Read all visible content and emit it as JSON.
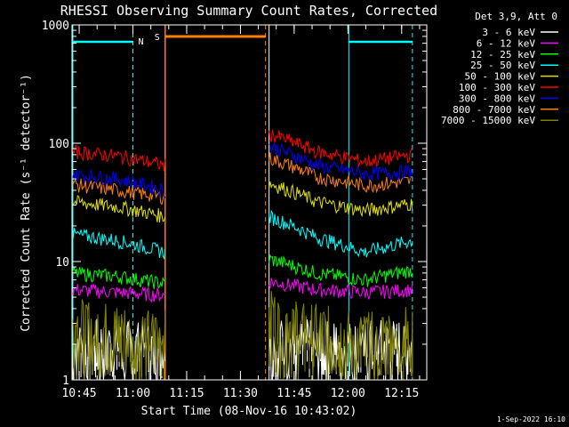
{
  "chart_data": {
    "type": "line",
    "title": "RHESSI Observing Summary Count Rates, Corrected",
    "xlabel": "Start Time (08-Nov-16 10:43:02)",
    "ylabel": "Corrected Count Rate (s⁻¹ detector⁻¹)",
    "x_ticks": [
      "10:45",
      "11:00",
      "11:15",
      "11:30",
      "11:45",
      "12:00",
      "12:15"
    ],
    "y_ticks": [
      "1",
      "10",
      "100",
      "1000"
    ],
    "y_scale": "log",
    "ylim": [
      1,
      1000
    ],
    "xlim": [
      "10:43",
      "12:22"
    ],
    "grid": false,
    "legend_title": "Det 3,9, Att 0",
    "legend_position": "right",
    "footer": "1-Sep-2022 16:10",
    "flags": [
      {
        "label": "N",
        "color": "#00ffff",
        "intervals": [
          [
            "10:43",
            "11:00"
          ],
          [
            "12:00",
            "12:18"
          ]
        ]
      },
      {
        "label": "S",
        "color": "#ff8000",
        "intervals": [
          [
            "11:09",
            "11:38"
          ]
        ]
      }
    ],
    "data_gap": [
      "11:09",
      "11:38"
    ],
    "series": [
      {
        "name": "3 - 6 keV",
        "color": "#ffffff",
        "before_gap": [
          2.0,
          1.9,
          1.8
        ],
        "after_gap": [
          2.0,
          1.9,
          1.9,
          2.0
        ]
      },
      {
        "name": "6 - 12 keV",
        "color": "#ff00ff",
        "before_gap": [
          5.8,
          5.5,
          5.2
        ],
        "after_gap": [
          6.8,
          5.8,
          5.5,
          5.8
        ]
      },
      {
        "name": "12 - 25 keV",
        "color": "#00ff00",
        "before_gap": [
          8.0,
          7.5,
          6.5
        ],
        "after_gap": [
          10.5,
          8.0,
          7.0,
          8.5
        ]
      },
      {
        "name": "25 - 50 keV",
        "color": "#00ffff",
        "before_gap": [
          17,
          15,
          12
        ],
        "after_gap": [
          24,
          16,
          12,
          15
        ]
      },
      {
        "name": "50 - 100 keV",
        "color": "#e0e000",
        "before_gap": [
          32,
          29,
          24
        ],
        "after_gap": [
          46,
          32,
          27,
          31
        ]
      },
      {
        "name": "100 - 300 keV",
        "color": "#ff0000",
        "before_gap": [
          85,
          78,
          65
        ],
        "after_gap": [
          120,
          85,
          70,
          80
        ]
      },
      {
        "name": "300 - 800 keV",
        "color": "#0000ff",
        "before_gap": [
          55,
          50,
          40
        ],
        "after_gap": [
          95,
          65,
          55,
          58
        ]
      },
      {
        "name": "800 - 7000 keV",
        "color": "#ff8000",
        "before_gap": [
          45,
          40,
          35
        ],
        "after_gap": [
          75,
          52,
          44,
          48
        ]
      },
      {
        "name": "7000 - 15000 keV",
        "color": "#808000",
        "before_gap": [
          3.0,
          2.6,
          2.3
        ],
        "after_gap": [
          3.5,
          2.6,
          2.2,
          2.6
        ]
      }
    ]
  }
}
